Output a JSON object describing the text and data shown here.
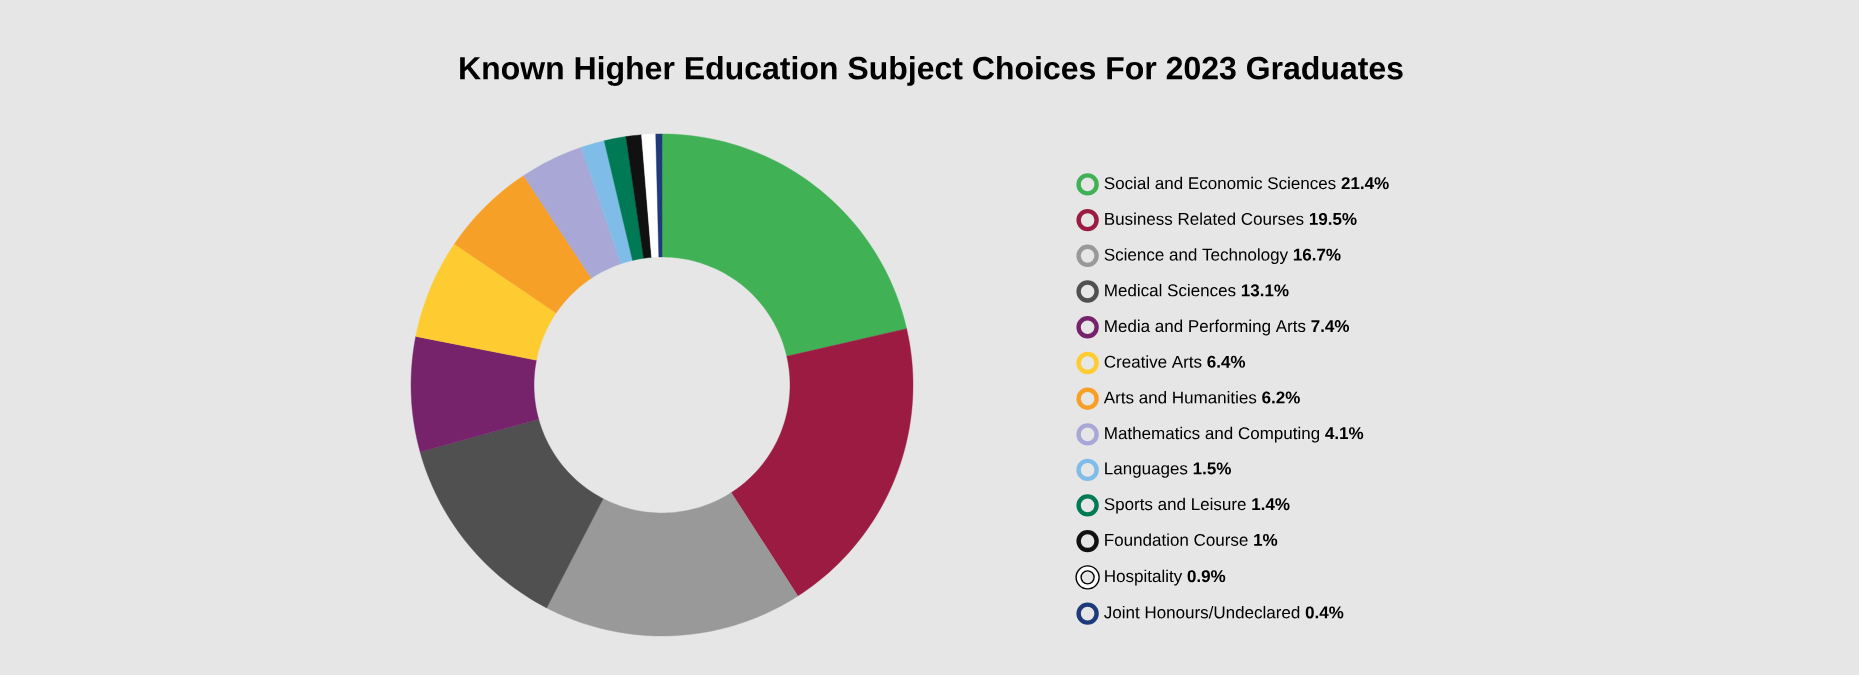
{
  "chart_data": {
    "type": "donut",
    "title": "Known Higher Education Subject Choices For 2023 Graduates",
    "categories": [
      "Social and Economic Sciences",
      "Business Related Courses",
      "Science and Technology",
      "Medical Sciences",
      "Media and Performing Arts",
      "Creative Arts",
      "Arts and Humanities",
      "Mathematics and Computing",
      "Languages",
      "Sports and Leisure",
      "Foundation Course",
      "Hospitality",
      "Joint Honours/Undeclared"
    ],
    "values": [
      21.4,
      19.5,
      16.7,
      13.1,
      7.4,
      6.4,
      6.2,
      4.1,
      1.5,
      1.4,
      1,
      0.9,
      0.4
    ],
    "value_labels": [
      "21.4%",
      "19.5%",
      "16.7%",
      "13.1%",
      "7.4%",
      "6.4%",
      "6.2%",
      "4.1%",
      "1.5%",
      "1.4%",
      "1%",
      "0.9%",
      "0.4%"
    ],
    "colors": [
      "#41b156",
      "#9b1b42",
      "#999999",
      "#505050",
      "#76236c",
      "#fecb30",
      "#f7a028",
      "#a9a7d6",
      "#7fbde8",
      "#007a55",
      "#111111",
      "#ffffff",
      "#1f3a7a"
    ],
    "legend": "right"
  }
}
